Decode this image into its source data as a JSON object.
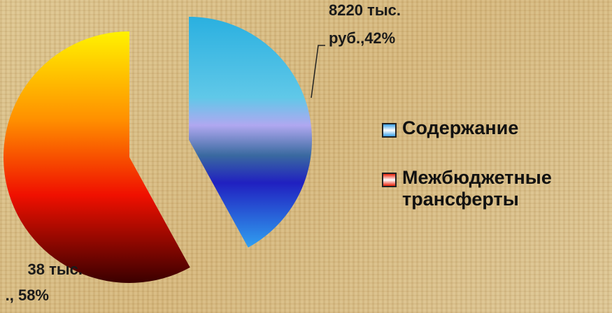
{
  "chart_data": {
    "type": "pie",
    "categories": [
      "Содержание",
      "Межбюджетные трансферты"
    ],
    "values": [
      42,
      58
    ],
    "value_labels": [
      [
        "8220 тыс.",
        "руб.,42%"
      ],
      [
        "38 тыс.",
        "., 58%"
      ]
    ],
    "colors": [
      "#3aa0e8",
      "#e8200a"
    ],
    "legend": "right"
  }
}
